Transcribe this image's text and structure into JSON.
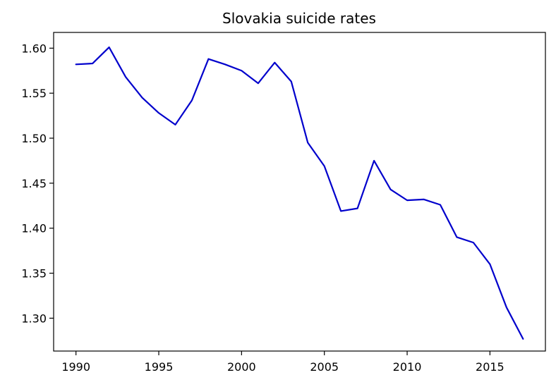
{
  "chart_data": {
    "type": "line",
    "title": "Slovakia suicide rates",
    "xlabel": "",
    "ylabel": "",
    "xlim": [
      1988.65,
      2018.35
    ],
    "ylim": [
      1.2635,
      1.6175
    ],
    "x_ticks": [
      1990,
      1995,
      2000,
      2005,
      2010,
      2015
    ],
    "y_ticks": [
      1.3,
      1.35,
      1.4,
      1.45,
      1.5,
      1.55,
      1.6
    ],
    "grid": false,
    "legend": "none",
    "series": [
      {
        "color": "#0000cc",
        "x": [
          1990,
          1991,
          1992,
          1993,
          1994,
          1995,
          1996,
          1997,
          1998,
          1999,
          2000,
          2001,
          2002,
          2003,
          2004,
          2005,
          2006,
          2007,
          2008,
          2009,
          2010,
          2011,
          2012,
          2013,
          2014,
          2015,
          2016,
          2017
        ],
        "values": [
          1.582,
          1.583,
          1.601,
          1.568,
          1.545,
          1.528,
          1.515,
          1.542,
          1.588,
          1.582,
          1.575,
          1.561,
          1.584,
          1.563,
          1.495,
          1.469,
          1.419,
          1.422,
          1.475,
          1.443,
          1.431,
          1.432,
          1.426,
          1.39,
          1.384,
          1.36,
          1.312,
          1.277
        ]
      }
    ]
  }
}
